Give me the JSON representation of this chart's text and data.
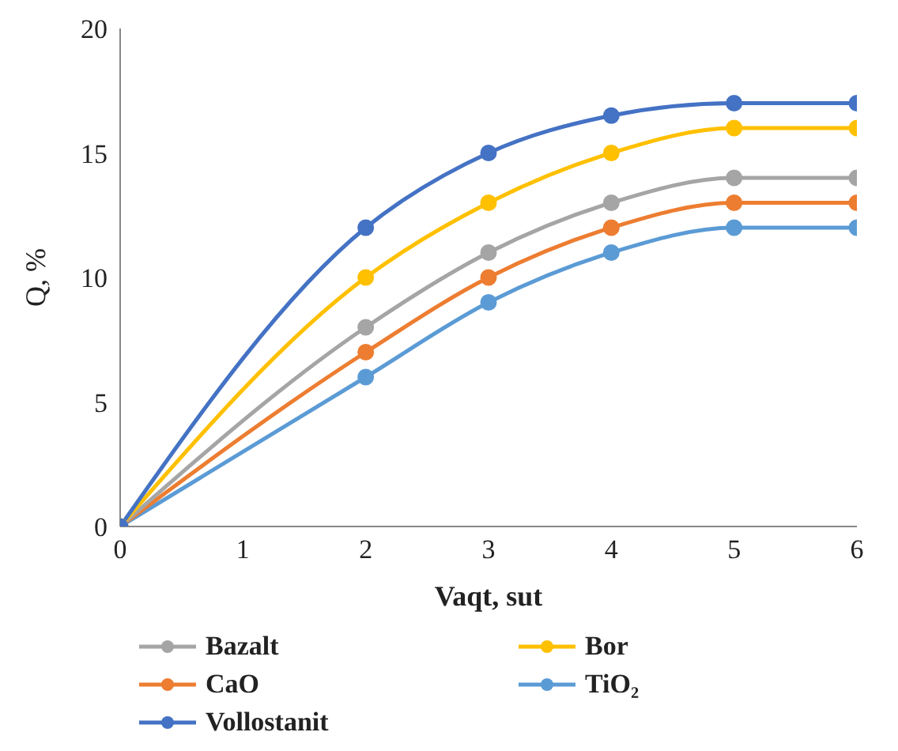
{
  "chart_data": {
    "type": "line",
    "xlabel": "Vaqt, sut",
    "ylabel": "Q, %",
    "x": [
      0,
      2,
      3,
      4,
      5,
      6
    ],
    "xlim": [
      0,
      6
    ],
    "xticks": [
      0,
      1,
      2,
      3,
      4,
      5,
      6
    ],
    "ylim": [
      0,
      20
    ],
    "yticks": [
      0,
      5,
      10,
      15,
      20
    ],
    "grid": false,
    "legend": "bottom",
    "marker": "circle",
    "line_style": "solid",
    "series": [
      {
        "name": "TiO₂",
        "color": "#5b9bd5",
        "values": [
          0,
          6,
          9,
          11,
          12,
          12
        ]
      },
      {
        "name": "CaO",
        "color": "#ed7d31",
        "values": [
          0,
          7,
          10,
          12,
          13,
          13
        ]
      },
      {
        "name": "Bazalt",
        "color": "#a5a5a5",
        "values": [
          0,
          8,
          11,
          13,
          14,
          14
        ]
      },
      {
        "name": "Bor",
        "color": "#ffc000",
        "values": [
          0,
          10,
          13,
          15,
          16,
          16
        ]
      },
      {
        "name": "Vollostanit",
        "color": "#4472c4",
        "values": [
          0,
          12,
          15,
          16.5,
          17,
          17
        ]
      }
    ]
  }
}
